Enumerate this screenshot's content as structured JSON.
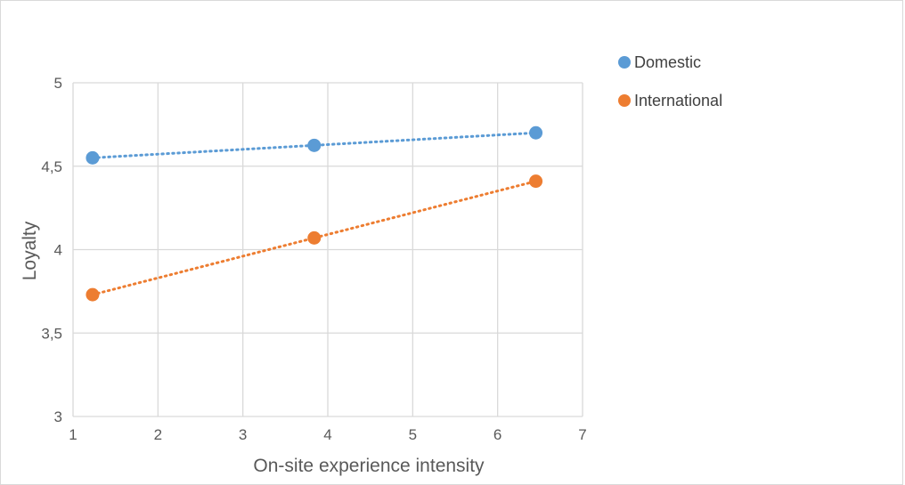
{
  "chart_data": {
    "type": "scatter",
    "xlabel": "On-site experience intensity",
    "ylabel": "Loyalty",
    "xlim": [
      1,
      7
    ],
    "ylim": [
      3,
      5
    ],
    "xticks": [
      1,
      2,
      3,
      4,
      5,
      6,
      7
    ],
    "yticks": [
      3,
      3.5,
      4,
      4.5,
      5
    ],
    "ytick_labels": [
      "3",
      "3,5",
      "4",
      "4,5",
      "5"
    ],
    "grid": true,
    "legend_position": "right",
    "trendline": "linear, dotted",
    "series": [
      {
        "name": "Domestic",
        "color": "#5b9bd5",
        "x": [
          1.23,
          3.84,
          6.45
        ],
        "y": [
          4.55,
          4.625,
          4.7
        ]
      },
      {
        "name": "International",
        "color": "#ed7d31",
        "x": [
          1.23,
          3.84,
          6.45
        ],
        "y": [
          3.73,
          4.07,
          4.41
        ]
      }
    ]
  }
}
